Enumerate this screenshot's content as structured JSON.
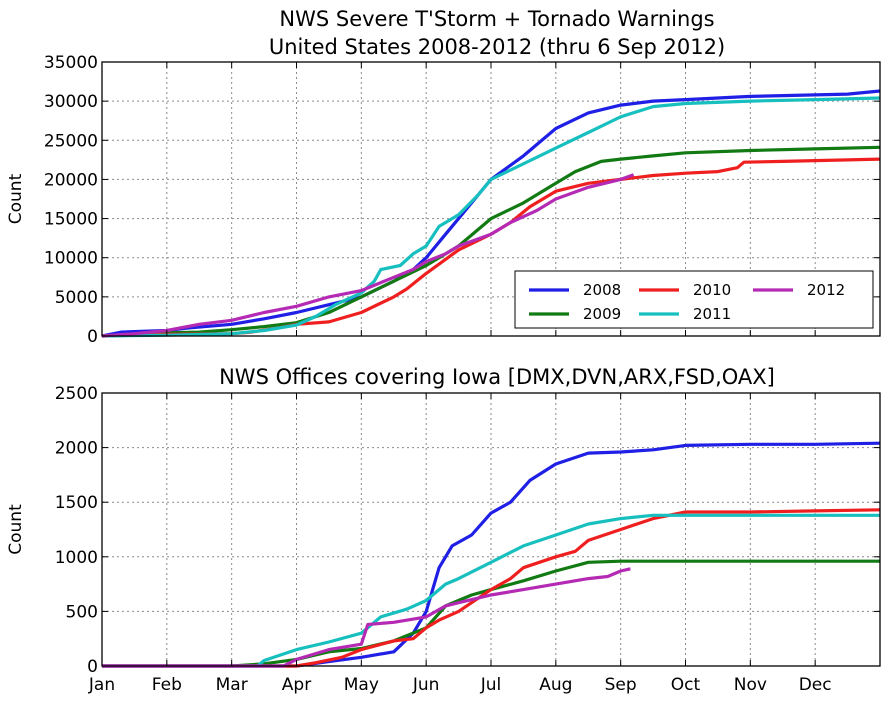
{
  "colors": {
    "2008": "#1f1fe6",
    "2009": "#127a12",
    "2010": "#ef1f1f",
    "2011": "#17bfbf",
    "2012": "#b52ab5"
  },
  "months": [
    "Jan",
    "Feb",
    "Mar",
    "Apr",
    "May",
    "Jun",
    "Jul",
    "Aug",
    "Sep",
    "Oct",
    "Nov",
    "Dec"
  ],
  "chart_data": [
    {
      "type": "line",
      "title_lines": [
        "NWS Severe T'Storm + Tornado Warnings",
        "United States 2008-2012 (thru 6 Sep 2012)"
      ],
      "xlabel": "",
      "ylabel": "Count",
      "xlim": [
        "Jan 1",
        "Dec 31"
      ],
      "ylim": [
        0,
        35000
      ],
      "yticks": [
        0,
        5000,
        10000,
        15000,
        20000,
        25000,
        30000,
        35000
      ],
      "grid": true,
      "legend": {
        "placement": "lower-right",
        "entries": [
          "2008",
          "2010",
          "2012",
          "2009",
          "2011"
        ]
      },
      "x_unit": "month (1.0 = Jan 1, 13.0 = Dec 31)",
      "series": [
        {
          "name": "2008",
          "points": [
            [
              1.0,
              0
            ],
            [
              1.3,
              500
            ],
            [
              2.0,
              700
            ],
            [
              2.3,
              1000
            ],
            [
              3.0,
              1500
            ],
            [
              3.5,
              2200
            ],
            [
              4.0,
              3000
            ],
            [
              4.5,
              4000
            ],
            [
              5.0,
              5000
            ],
            [
              5.5,
              7000
            ],
            [
              5.8,
              8500
            ],
            [
              6.0,
              10000
            ],
            [
              6.3,
              13000
            ],
            [
              6.6,
              16000
            ],
            [
              7.0,
              20000
            ],
            [
              7.5,
              23000
            ],
            [
              8.0,
              26500
            ],
            [
              8.5,
              28500
            ],
            [
              9.0,
              29500
            ],
            [
              9.5,
              30000
            ],
            [
              10.0,
              30200
            ],
            [
              11.0,
              30600
            ],
            [
              12.0,
              30800
            ],
            [
              12.5,
              30900
            ],
            [
              13.0,
              31300
            ]
          ]
        },
        {
          "name": "2009",
          "points": [
            [
              1.0,
              0
            ],
            [
              1.5,
              200
            ],
            [
              2.0,
              400
            ],
            [
              2.5,
              500
            ],
            [
              3.0,
              800
            ],
            [
              3.5,
              1200
            ],
            [
              4.0,
              1700
            ],
            [
              4.5,
              3000
            ],
            [
              5.0,
              5000
            ],
            [
              5.5,
              7000
            ],
            [
              6.0,
              9000
            ],
            [
              6.5,
              11500
            ],
            [
              7.0,
              15000
            ],
            [
              7.5,
              17000
            ],
            [
              8.0,
              19500
            ],
            [
              8.3,
              21000
            ],
            [
              8.7,
              22300
            ],
            [
              9.0,
              22600
            ],
            [
              9.5,
              23000
            ],
            [
              10.0,
              23400
            ],
            [
              11.0,
              23700
            ],
            [
              12.0,
              23900
            ],
            [
              13.0,
              24100
            ]
          ]
        },
        {
          "name": "2010",
          "points": [
            [
              1.0,
              0
            ],
            [
              2.0,
              200
            ],
            [
              3.0,
              300
            ],
            [
              3.3,
              500
            ],
            [
              3.7,
              1000
            ],
            [
              4.0,
              1500
            ],
            [
              4.5,
              1800
            ],
            [
              5.0,
              3000
            ],
            [
              5.5,
              5000
            ],
            [
              5.7,
              6000
            ],
            [
              6.0,
              8000
            ],
            [
              6.5,
              11000
            ],
            [
              7.0,
              13000
            ],
            [
              7.3,
              14500
            ],
            [
              7.6,
              16500
            ],
            [
              8.0,
              18500
            ],
            [
              8.5,
              19500
            ],
            [
              9.0,
              20000
            ],
            [
              9.5,
              20500
            ],
            [
              10.0,
              20800
            ],
            [
              10.5,
              21000
            ],
            [
              10.8,
              21500
            ],
            [
              10.9,
              22200
            ],
            [
              11.5,
              22300
            ],
            [
              12.0,
              22400
            ],
            [
              13.0,
              22600
            ]
          ]
        },
        {
          "name": "2011",
          "points": [
            [
              1.0,
              0
            ],
            [
              2.0,
              100
            ],
            [
              3.0,
              300
            ],
            [
              3.5,
              700
            ],
            [
              4.0,
              1400
            ],
            [
              4.3,
              2500
            ],
            [
              4.6,
              4000
            ],
            [
              5.0,
              5500
            ],
            [
              5.2,
              7000
            ],
            [
              5.3,
              8500
            ],
            [
              5.6,
              9000
            ],
            [
              5.8,
              10500
            ],
            [
              6.0,
              11500
            ],
            [
              6.2,
              14000
            ],
            [
              6.5,
              15500
            ],
            [
              6.8,
              18000
            ],
            [
              7.0,
              20000
            ],
            [
              7.5,
              22000
            ],
            [
              8.0,
              24000
            ],
            [
              8.5,
              26000
            ],
            [
              9.0,
              28000
            ],
            [
              9.5,
              29300
            ],
            [
              10.0,
              29700
            ],
            [
              11.0,
              30000
            ],
            [
              12.0,
              30200
            ],
            [
              13.0,
              30400
            ]
          ]
        },
        {
          "name": "2012",
          "points": [
            [
              1.0,
              0
            ],
            [
              1.5,
              300
            ],
            [
              2.0,
              700
            ],
            [
              2.5,
              1500
            ],
            [
              3.0,
              2000
            ],
            [
              3.5,
              3000
            ],
            [
              4.0,
              3800
            ],
            [
              4.5,
              5000
            ],
            [
              5.0,
              5800
            ],
            [
              5.5,
              7500
            ],
            [
              5.8,
              8500
            ],
            [
              6.0,
              9500
            ],
            [
              6.3,
              10500
            ],
            [
              6.5,
              11500
            ],
            [
              7.0,
              13000
            ],
            [
              7.3,
              14500
            ],
            [
              7.7,
              16000
            ],
            [
              8.0,
              17500
            ],
            [
              8.5,
              19000
            ],
            [
              9.0,
              20000
            ],
            [
              9.2,
              20600
            ]
          ]
        }
      ]
    },
    {
      "type": "line",
      "title_lines": [
        "NWS Offices covering Iowa [DMX,DVN,ARX,FSD,OAX]"
      ],
      "xlabel": "",
      "ylabel": "Count",
      "xlim": [
        "Jan 1",
        "Dec 31"
      ],
      "ylim": [
        0,
        2500
      ],
      "yticks": [
        0,
        500,
        1000,
        1500,
        2000,
        2500
      ],
      "grid": true,
      "x_unit": "month (1.0 = Jan 1, 13.0 = Dec 31)",
      "series": [
        {
          "name": "2008",
          "points": [
            [
              1.0,
              0
            ],
            [
              4.0,
              0
            ],
            [
              4.5,
              40
            ],
            [
              5.0,
              80
            ],
            [
              5.5,
              130
            ],
            [
              5.8,
              300
            ],
            [
              6.0,
              500
            ],
            [
              6.2,
              900
            ],
            [
              6.4,
              1100
            ],
            [
              6.7,
              1200
            ],
            [
              7.0,
              1400
            ],
            [
              7.3,
              1500
            ],
            [
              7.6,
              1700
            ],
            [
              8.0,
              1850
            ],
            [
              8.5,
              1950
            ],
            [
              9.0,
              1960
            ],
            [
              9.5,
              1980
            ],
            [
              10.0,
              2020
            ],
            [
              11.0,
              2030
            ],
            [
              12.0,
              2030
            ],
            [
              13.0,
              2040
            ]
          ]
        },
        {
          "name": "2009",
          "points": [
            [
              1.0,
              0
            ],
            [
              3.0,
              0
            ],
            [
              3.5,
              20
            ],
            [
              4.0,
              60
            ],
            [
              4.5,
              130
            ],
            [
              5.0,
              160
            ],
            [
              5.5,
              230
            ],
            [
              6.0,
              350
            ],
            [
              6.3,
              550
            ],
            [
              6.7,
              650
            ],
            [
              7.0,
              700
            ],
            [
              7.5,
              780
            ],
            [
              8.0,
              870
            ],
            [
              8.5,
              950
            ],
            [
              9.0,
              960
            ],
            [
              9.5,
              960
            ],
            [
              10.0,
              960
            ],
            [
              13.0,
              960
            ]
          ]
        },
        {
          "name": "2010",
          "points": [
            [
              1.0,
              0
            ],
            [
              4.0,
              0
            ],
            [
              4.3,
              30
            ],
            [
              4.7,
              80
            ],
            [
              5.0,
              150
            ],
            [
              5.5,
              230
            ],
            [
              5.8,
              250
            ],
            [
              6.0,
              350
            ],
            [
              6.2,
              420
            ],
            [
              6.5,
              500
            ],
            [
              7.0,
              700
            ],
            [
              7.3,
              800
            ],
            [
              7.5,
              900
            ],
            [
              8.0,
              1000
            ],
            [
              8.3,
              1050
            ],
            [
              8.5,
              1150
            ],
            [
              9.0,
              1250
            ],
            [
              9.5,
              1350
            ],
            [
              10.0,
              1410
            ],
            [
              11.0,
              1410
            ],
            [
              12.0,
              1420
            ],
            [
              13.0,
              1430
            ]
          ]
        },
        {
          "name": "2011",
          "points": [
            [
              1.0,
              0
            ],
            [
              3.4,
              0
            ],
            [
              3.5,
              50
            ],
            [
              4.0,
              150
            ],
            [
              4.5,
              220
            ],
            [
              5.0,
              300
            ],
            [
              5.3,
              450
            ],
            [
              5.7,
              520
            ],
            [
              6.0,
              600
            ],
            [
              6.3,
              750
            ],
            [
              6.5,
              800
            ],
            [
              7.0,
              950
            ],
            [
              7.5,
              1100
            ],
            [
              8.0,
              1200
            ],
            [
              8.5,
              1300
            ],
            [
              9.0,
              1350
            ],
            [
              9.5,
              1380
            ],
            [
              10.0,
              1380
            ],
            [
              13.0,
              1380
            ]
          ]
        },
        {
          "name": "2012",
          "points": [
            [
              1.0,
              0
            ],
            [
              3.8,
              0
            ],
            [
              4.0,
              60
            ],
            [
              4.5,
              150
            ],
            [
              5.0,
              200
            ],
            [
              5.1,
              380
            ],
            [
              5.5,
              400
            ],
            [
              6.0,
              450
            ],
            [
              6.3,
              550
            ],
            [
              6.5,
              580
            ],
            [
              7.0,
              650
            ],
            [
              7.5,
              700
            ],
            [
              8.0,
              750
            ],
            [
              8.5,
              800
            ],
            [
              8.8,
              820
            ],
            [
              9.0,
              870
            ],
            [
              9.15,
              890
            ]
          ]
        }
      ]
    }
  ]
}
